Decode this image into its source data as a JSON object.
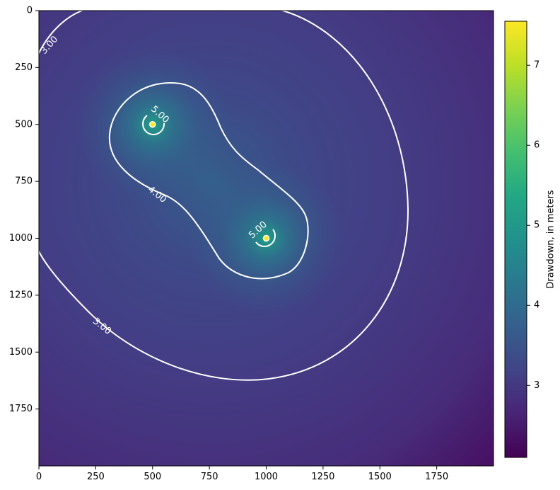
{
  "chart_data": {
    "type": "heatmap",
    "title": "",
    "xlabel": "",
    "ylabel": "",
    "xlim": [
      0,
      2000
    ],
    "ylim": [
      2000,
      0
    ],
    "y_axis_inverted": true,
    "x_ticks": [
      0,
      250,
      500,
      750,
      1000,
      1250,
      1500,
      1750
    ],
    "y_ticks": [
      0,
      250,
      500,
      750,
      1000,
      1250,
      1500,
      1750
    ],
    "colormap": "viridis",
    "colorbar": {
      "label": "Drawdown, in meters",
      "range": [
        2.1,
        7.55
      ],
      "ticks": [
        3,
        4,
        5,
        6,
        7
      ],
      "placement": "right"
    },
    "wells": [
      {
        "x": 500,
        "y": 500
      },
      {
        "x": 1000,
        "y": 1000
      }
    ],
    "contours": [
      {
        "level": 3.0,
        "label": "3.00",
        "label_positions": [
          [
            40,
            140
          ],
          [
            280,
            1390
          ]
        ]
      },
      {
        "level": 4.0,
        "label": "4.00",
        "label_positions": [
          [
            520,
            800
          ]
        ]
      },
      {
        "level": 5.0,
        "label": "5.00",
        "label_positions": [
          [
            510,
            440
          ],
          [
            960,
            960
          ]
        ]
      }
    ],
    "contour_color": "#ffffff"
  }
}
